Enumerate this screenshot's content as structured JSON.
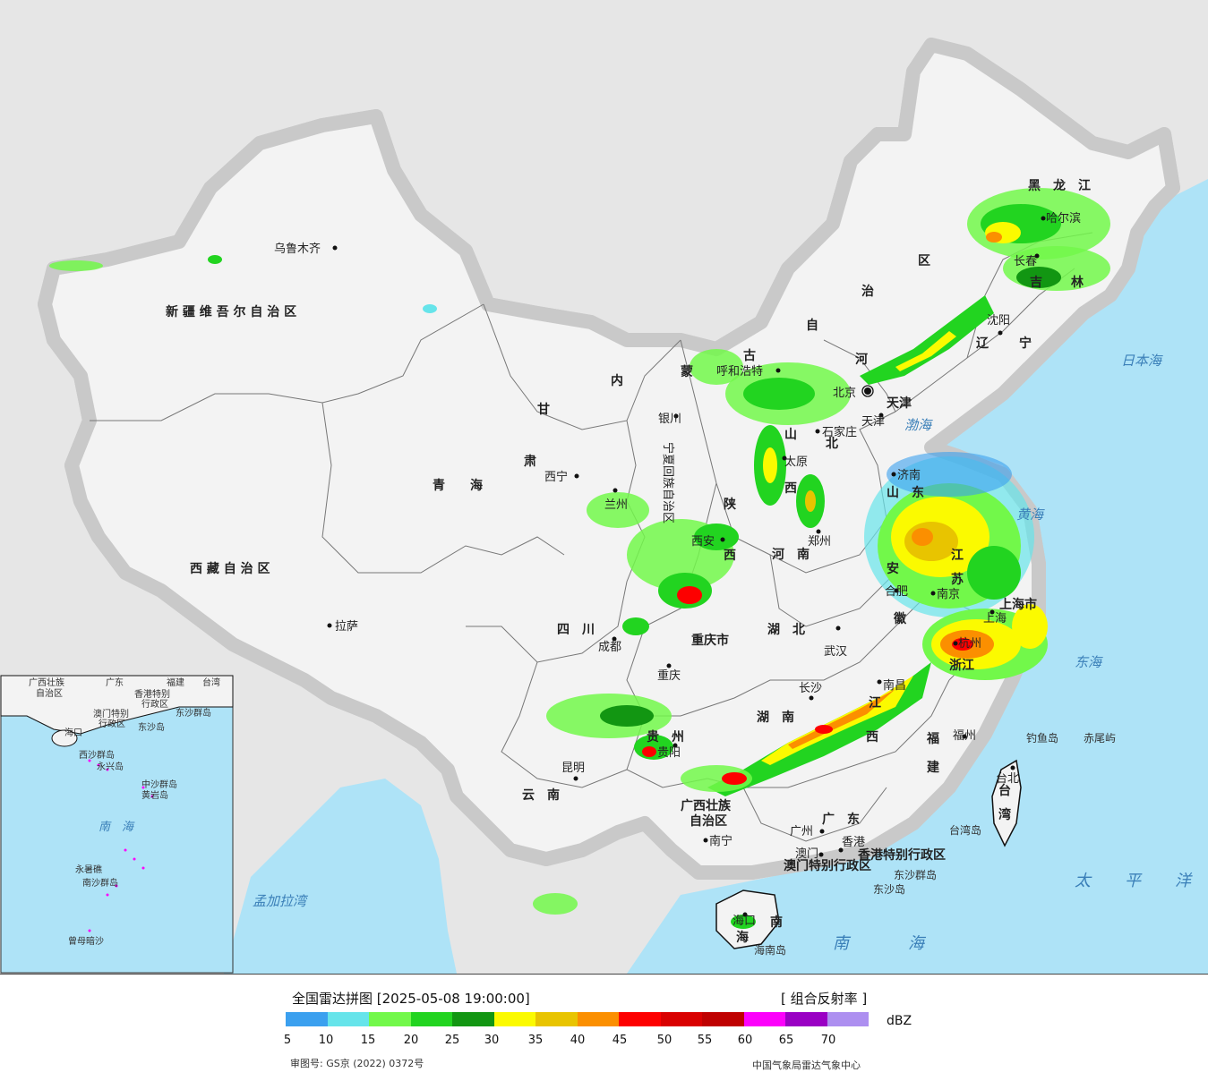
{
  "map": {
    "colors": {
      "sea": "#aee3f7",
      "land_china": "#f3f3f3",
      "land_other": "#e6e6e6",
      "border": "#111111",
      "province_border": "#777777"
    },
    "provinces": [
      {
        "name": "新 疆 维 吾 尔 自 治 区"
      },
      {
        "name": "西 藏 自 治 区"
      },
      {
        "name": "青　　海"
      },
      {
        "name": "甘"
      },
      {
        "name": "肃"
      },
      {
        "name": "内"
      },
      {
        "name": "蒙"
      },
      {
        "name": "古"
      },
      {
        "name": "自"
      },
      {
        "name": "治"
      },
      {
        "name": "区"
      },
      {
        "name": "黑　龙　江"
      },
      {
        "name": "吉"
      },
      {
        "name": "林"
      },
      {
        "name": "辽"
      },
      {
        "name": "宁"
      },
      {
        "name": "河"
      },
      {
        "name": "北"
      },
      {
        "name": "山"
      },
      {
        "name": "西"
      },
      {
        "name": "山　东"
      },
      {
        "name": "河　南"
      },
      {
        "name": "陕"
      },
      {
        "name": "西"
      },
      {
        "name": "宁夏回族自治区"
      },
      {
        "name": "四　川"
      },
      {
        "name": "重庆市"
      },
      {
        "name": "湖　北"
      },
      {
        "name": "安"
      },
      {
        "name": "徽"
      },
      {
        "name": "江"
      },
      {
        "name": "苏"
      },
      {
        "name": "上海市"
      },
      {
        "name": "浙江"
      },
      {
        "name": "湖　南"
      },
      {
        "name": "江"
      },
      {
        "name": "西"
      },
      {
        "name": "贵　州"
      },
      {
        "name": "云　南"
      },
      {
        "name": "福"
      },
      {
        "name": "建"
      },
      {
        "name": "广西壮族"
      },
      {
        "name": "自治区"
      },
      {
        "name": "广　东"
      },
      {
        "name": "台"
      },
      {
        "name": "湾"
      },
      {
        "name": "海"
      },
      {
        "name": "南"
      },
      {
        "name": "香港特别行政区"
      },
      {
        "name": "澳门特别行政区"
      },
      {
        "name": "天津"
      }
    ],
    "cities": [
      {
        "name": "乌鲁木齐"
      },
      {
        "name": "拉萨"
      },
      {
        "name": "西宁"
      },
      {
        "name": "兰州"
      },
      {
        "name": "银川"
      },
      {
        "name": "呼和浩特"
      },
      {
        "name": "北京"
      },
      {
        "name": "天津"
      },
      {
        "name": "石家庄"
      },
      {
        "name": "太原"
      },
      {
        "name": "济南"
      },
      {
        "name": "郑州"
      },
      {
        "name": "西安"
      },
      {
        "name": "成都"
      },
      {
        "name": "重庆"
      },
      {
        "name": "武汉"
      },
      {
        "name": "合肥"
      },
      {
        "name": "南京"
      },
      {
        "name": "上海"
      },
      {
        "name": "杭州"
      },
      {
        "name": "长沙"
      },
      {
        "name": "南昌"
      },
      {
        "name": "贵阳"
      },
      {
        "name": "昆明"
      },
      {
        "name": "福州"
      },
      {
        "name": "台北"
      },
      {
        "name": "广州"
      },
      {
        "name": "南宁"
      },
      {
        "name": "香港"
      },
      {
        "name": "澳门"
      },
      {
        "name": "海口"
      },
      {
        "name": "沈阳"
      },
      {
        "name": "长春"
      },
      {
        "name": "哈尔滨"
      }
    ],
    "seas": [
      {
        "name": "日本海"
      },
      {
        "name": "渤海"
      },
      {
        "name": "黄海"
      },
      {
        "name": "东海"
      },
      {
        "name": "太　平　洋"
      },
      {
        "name": "南　　海"
      },
      {
        "name": "孟加拉湾"
      }
    ],
    "islands": [
      {
        "name": "钓鱼岛"
      },
      {
        "name": "赤尾屿"
      },
      {
        "name": "台湾岛"
      },
      {
        "name": "东沙群岛"
      },
      {
        "name": "东沙岛"
      },
      {
        "name": "海南岛"
      }
    ],
    "inset": {
      "labels": [
        {
          "name": "广西壮族"
        },
        {
          "name": "自治区"
        },
        {
          "name": "广东"
        },
        {
          "name": "福建"
        },
        {
          "name": "台湾"
        },
        {
          "name": "香港特别"
        },
        {
          "name": "行政区"
        },
        {
          "name": "澳门特别"
        },
        {
          "name": "行政区"
        },
        {
          "name": "东沙群岛"
        },
        {
          "name": "东沙岛"
        },
        {
          "name": "海口"
        },
        {
          "name": "西沙群岛"
        },
        {
          "name": "永兴岛"
        },
        {
          "name": "中沙群岛"
        },
        {
          "name": "黄岩岛"
        },
        {
          "name": "永暑礁"
        },
        {
          "name": "南沙群岛"
        },
        {
          "name": "曾母暗沙"
        },
        {
          "name": "南　海"
        }
      ]
    }
  },
  "legend": {
    "title": "全国雷达拼图 [2025-05-08 19:00:00]",
    "product": "[ 组合反射率 ]",
    "unit": "dBZ",
    "approval": "审图号: GS京 (2022) 0372号",
    "source": "中国气象局雷达气象中心",
    "colors": [
      "#3ba0ef",
      "#66e4ea",
      "#72f84a",
      "#22d420",
      "#129612",
      "#fbfa00",
      "#e8c400",
      "#fb8f00",
      "#fd0000",
      "#d90000",
      "#bf0000",
      "#fc00fb",
      "#9a00c4",
      "#ad8ff0"
    ],
    "ticks": [
      "5",
      "10",
      "15",
      "20",
      "25",
      "30",
      "35",
      "40",
      "45",
      "50",
      "55",
      "60",
      "65",
      "70"
    ]
  }
}
